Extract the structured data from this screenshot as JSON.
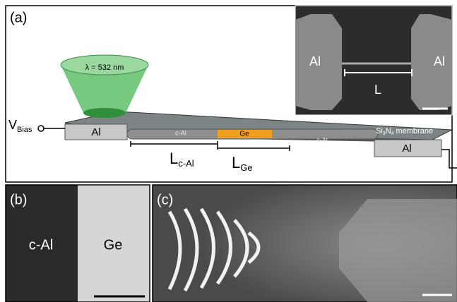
{
  "panel_a": {
    "label": "(a)",
    "laser": "λ = 532 nm",
    "bias": {
      "main": "V",
      "sub": "Bias"
    },
    "pad_left": "Al",
    "pad_right": "Al",
    "wire": [
      "c-Al",
      "Ge",
      "c-Al"
    ],
    "membrane": {
      "si": "Si",
      "si_sub": "3",
      "n": "N",
      "n_sub": "4",
      "word": "membrane"
    },
    "length_cal": {
      "main": "L",
      "sub": "c-Al"
    },
    "length_ge": {
      "main": "L",
      "sub": "Ge"
    },
    "inset": {
      "left": "Al",
      "right": "Al",
      "length": "L"
    }
  },
  "panel_b": {
    "label": "(b)",
    "left": "c-Al",
    "right": "Ge"
  },
  "panel_c": {
    "label": "(c)"
  }
}
